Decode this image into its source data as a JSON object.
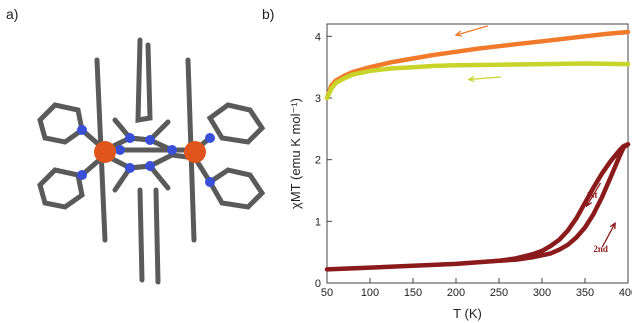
{
  "panel_labels": {
    "a": "a)",
    "b": "b)"
  },
  "colors": {
    "orange": "#f07a2a",
    "lime": "#c8d42a",
    "darkred": "#8b1a1a",
    "mol_carbon": "#5a5a5a",
    "mol_nitrogen": "#3a4fd8",
    "mol_iron": "#e0551c"
  },
  "chart_data": {
    "type": "line",
    "xlabel": "T (K)",
    "ylabel": "χMT (emu K mol⁻¹)",
    "xlim": [
      50,
      400
    ],
    "ylim": [
      0,
      4.2
    ],
    "x_ticks": [
      "50",
      "100",
      "150",
      "200",
      "250",
      "300",
      "350",
      "400"
    ],
    "y_ticks": [
      "0",
      "1",
      "2",
      "3",
      "4"
    ],
    "grid": false,
    "series": [
      {
        "color_key": "orange",
        "x": [
          50,
          55,
          60,
          70,
          80,
          100,
          125,
          150,
          175,
          200,
          225,
          250,
          275,
          300,
          325,
          350,
          375,
          400
        ],
        "y": [
          3.0,
          3.2,
          3.28,
          3.36,
          3.42,
          3.5,
          3.58,
          3.64,
          3.7,
          3.75,
          3.8,
          3.84,
          3.88,
          3.92,
          3.96,
          4.0,
          4.04,
          4.07
        ]
      },
      {
        "color_key": "lime",
        "x": [
          50,
          55,
          60,
          70,
          80,
          100,
          125,
          150,
          175,
          200,
          250,
          300,
          350,
          400
        ],
        "y": [
          3.0,
          3.15,
          3.24,
          3.32,
          3.38,
          3.44,
          3.48,
          3.5,
          3.52,
          3.53,
          3.54,
          3.55,
          3.56,
          3.55
        ]
      },
      {
        "color_key": "darkred",
        "x": [
          50,
          100,
          150,
          200,
          250,
          270,
          290,
          300,
          310,
          320,
          330,
          340,
          350,
          360,
          370,
          380,
          390,
          395,
          400
        ],
        "y": [
          0.22,
          0.25,
          0.28,
          0.31,
          0.36,
          0.4,
          0.47,
          0.52,
          0.6,
          0.7,
          0.85,
          1.05,
          1.3,
          1.55,
          1.78,
          1.98,
          2.15,
          2.22,
          2.25
        ]
      },
      {
        "color_key": "darkred",
        "x": [
          400,
          395,
          390,
          380,
          370,
          360,
          350,
          340,
          330,
          320,
          310,
          300,
          290,
          270,
          250
        ],
        "y": [
          2.25,
          2.2,
          2.05,
          1.72,
          1.4,
          1.12,
          0.9,
          0.74,
          0.62,
          0.54,
          0.48,
          0.45,
          0.42,
          0.38,
          0.36
        ]
      }
    ],
    "annotations": [
      {
        "label": "1st",
        "x": 368,
        "y": 1.3
      },
      {
        "label": "2nd",
        "x": 376,
        "y": 0.7
      }
    ]
  }
}
